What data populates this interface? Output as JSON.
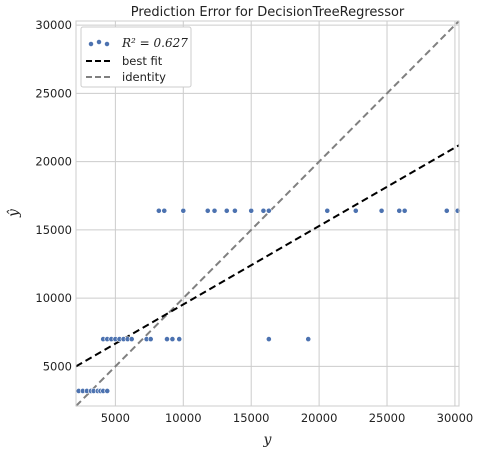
{
  "chart_data": {
    "type": "scatter",
    "title": "Prediction Error for DecisionTreeRegressor",
    "xlabel": "y",
    "ylabel": "ŷ",
    "xlim": [
      2100,
      30300
    ],
    "ylim": [
      2100,
      30300
    ],
    "xticks": [
      5000,
      10000,
      15000,
      20000,
      25000,
      30000
    ],
    "yticks": [
      5000,
      10000,
      15000,
      20000,
      25000,
      30000
    ],
    "grid": true,
    "legend_position": "top-left",
    "legend": {
      "points_label": "R² = 0.627",
      "best_fit_label": "best fit",
      "identity_label": "identity"
    },
    "colors": {
      "points": "#4c72b0",
      "best_fit": "#000000",
      "identity": "#808080",
      "grid": "#cccccc"
    },
    "best_fit": {
      "x": [
        2100,
        30300
      ],
      "y": [
        5000,
        21200
      ]
    },
    "identity": {
      "x": [
        2100,
        30300
      ],
      "y": [
        2100,
        30300
      ]
    },
    "series": [
      {
        "values": [
          [
            2300,
            3200
          ],
          [
            2600,
            3200
          ],
          [
            2900,
            3200
          ],
          [
            3200,
            3200
          ],
          [
            3400,
            3200
          ],
          [
            3700,
            3200
          ],
          [
            3900,
            3200
          ],
          [
            4100,
            3200
          ],
          [
            4400,
            3200
          ],
          [
            4100,
            7000
          ],
          [
            4400,
            7000
          ],
          [
            4700,
            7000
          ],
          [
            5000,
            7000
          ],
          [
            5300,
            7000
          ],
          [
            5600,
            7000
          ],
          [
            5900,
            7000
          ],
          [
            6200,
            7000
          ],
          [
            7300,
            7000
          ],
          [
            7600,
            7000
          ],
          [
            8800,
            7000
          ],
          [
            9200,
            7000
          ],
          [
            9700,
            7000
          ],
          [
            16300,
            7000
          ],
          [
            19200,
            7000
          ],
          [
            8200,
            16400
          ],
          [
            8600,
            16400
          ],
          [
            10000,
            16400
          ],
          [
            11800,
            16400
          ],
          [
            12300,
            16400
          ],
          [
            13200,
            16400
          ],
          [
            13800,
            16400
          ],
          [
            15000,
            16400
          ],
          [
            15900,
            16400
          ],
          [
            16300,
            16400
          ],
          [
            20600,
            16400
          ],
          [
            22700,
            16400
          ],
          [
            24600,
            16400
          ],
          [
            25900,
            16400
          ],
          [
            26300,
            16400
          ],
          [
            29400,
            16400
          ],
          [
            30200,
            16400
          ]
        ]
      }
    ]
  }
}
